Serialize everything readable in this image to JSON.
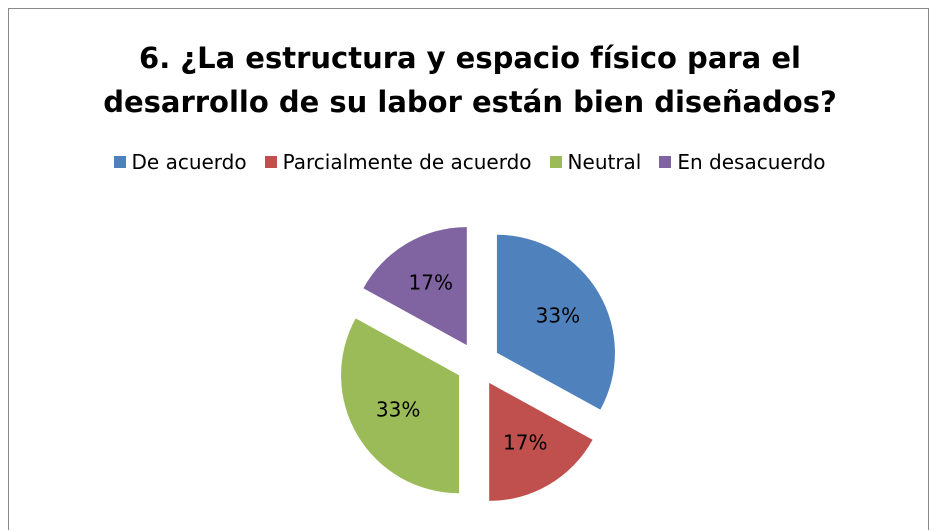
{
  "chart_data": {
    "type": "pie",
    "title": "6. ¿La estructura y espacio físico para el desarrollo de su labor están bien diseñados?",
    "categories": [
      "De acuerdo",
      "Parcialmente de acuerdo",
      "Neutral",
      "En desacuerdo"
    ],
    "values": [
      33,
      17,
      33,
      17
    ],
    "value_labels": [
      "33%",
      "17%",
      "33%",
      "17%"
    ],
    "colors": [
      "#4f81bd",
      "#c0504d",
      "#9bbb59",
      "#8064a2"
    ],
    "legend": "top",
    "exploded": true
  }
}
